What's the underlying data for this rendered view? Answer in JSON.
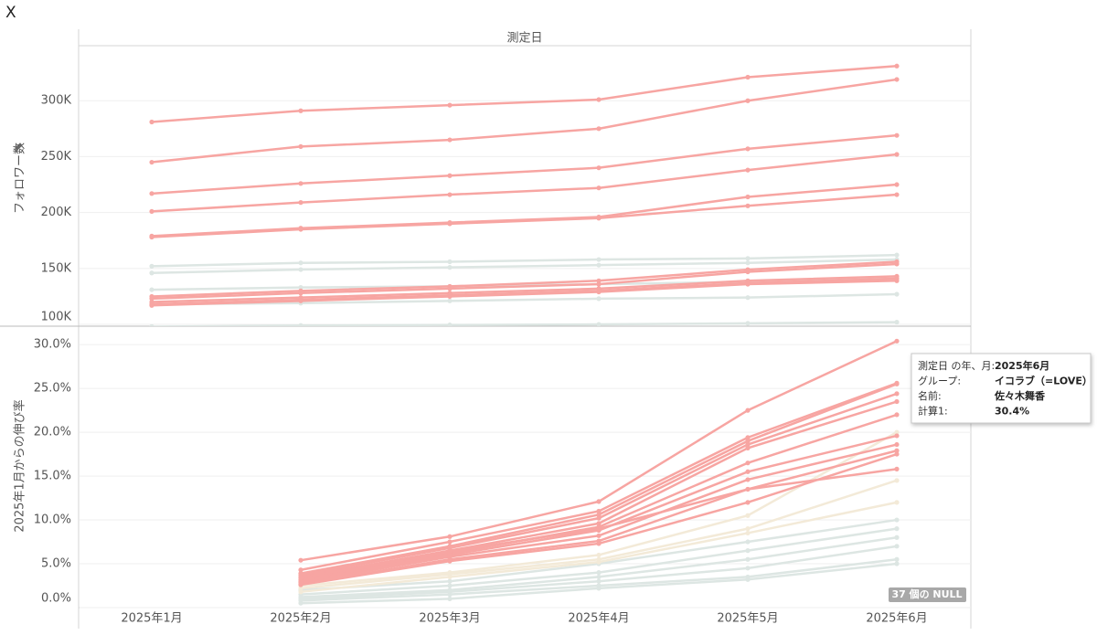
{
  "header": {
    "close": "X"
  },
  "chart_data": [
    {
      "type": "line",
      "x_label": "測定日",
      "y_label": "フォロワー数",
      "grid": true,
      "ylim": [
        98400,
        349200
      ],
      "yticks": [
        {
          "value": 100000,
          "label": "100K"
        },
        {
          "value": 150000,
          "label": "150K"
        },
        {
          "value": 200000,
          "label": "200K"
        },
        {
          "value": 250000,
          "label": "250K"
        },
        {
          "value": 300000,
          "label": "300K"
        }
      ],
      "series": [
        {
          "color": "#dde6e3",
          "values": [
            152000,
            155000,
            156000,
            158000,
            159000,
            162000
          ]
        },
        {
          "color": "#dde6e3",
          "values": [
            146000,
            149000,
            151000,
            153000,
            155000,
            158000
          ]
        },
        {
          "color": "#dde6e3",
          "values": [
            131000,
            133000,
            134000,
            136000,
            138000,
            141000
          ]
        },
        {
          "color": "#dde6e3",
          "values": [
            118000,
            119000,
            121000,
            123000,
            124000,
            127000
          ]
        },
        {
          "color": "#dde6e3",
          "values": [
            98000,
            99000,
            99500,
            100000,
            101000,
            102000
          ]
        },
        {
          "color": "#f7a5a2",
          "values": [
            281000,
            291000,
            296000,
            301000,
            321000,
            331000
          ]
        },
        {
          "color": "#f7a5a2",
          "values": [
            245000,
            259000,
            265000,
            275000,
            300000,
            319000
          ]
        },
        {
          "color": "#f7a5a2",
          "values": [
            217000,
            226000,
            233000,
            240000,
            257000,
            269000
          ]
        },
        {
          "color": "#f7a5a2",
          "values": [
            201000,
            209000,
            216000,
            222000,
            238000,
            252000
          ]
        },
        {
          "color": "#f7a5a2",
          "values": [
            179000,
            186000,
            191000,
            196000,
            214000,
            225000
          ]
        },
        {
          "color": "#f7a5a2",
          "values": [
            178000,
            185000,
            190000,
            195000,
            206000,
            216000
          ]
        },
        {
          "color": "#f7a5a2",
          "values": [
            125000,
            130000,
            134000,
            139000,
            149000,
            156000
          ]
        },
        {
          "color": "#f7a5a2",
          "values": [
            123000,
            128000,
            132000,
            136000,
            147000,
            154000
          ]
        },
        {
          "color": "#f7a5a2",
          "values": [
            120000,
            124000,
            128000,
            132000,
            139000,
            143000
          ]
        },
        {
          "color": "#f7a5a2",
          "values": [
            118000,
            122000,
            126000,
            130000,
            137000,
            141000
          ]
        },
        {
          "color": "#f7a5a2",
          "values": [
            117000,
            121000,
            125000,
            129000,
            136000,
            139000
          ]
        }
      ]
    },
    {
      "type": "line",
      "y_label": "2025年1月からの伸び率",
      "grid": true,
      "categories": [
        "2025年1月",
        "2025年2月",
        "2025年3月",
        "2025年4月",
        "2025年5月",
        "2025年6月"
      ],
      "ylim": [
        0,
        32.1
      ],
      "yticks": [
        {
          "value": 0,
          "label": "0.0%"
        },
        {
          "value": 5,
          "label": "5.0%"
        },
        {
          "value": 10,
          "label": "10.0%"
        },
        {
          "value": 15,
          "label": "15.0%"
        },
        {
          "value": 20,
          "label": "20.0%"
        },
        {
          "value": 25,
          "label": "25.0%"
        },
        {
          "value": 30,
          "label": "30.0%"
        }
      ],
      "series": [
        {
          "color": "#dde6e3",
          "values": [
            null,
            2.0,
            3.0,
            5.0,
            7.5,
            10.0
          ]
        },
        {
          "color": "#dde6e3",
          "values": [
            null,
            1.5,
            2.5,
            4.0,
            6.5,
            9.0
          ]
        },
        {
          "color": "#dde6e3",
          "values": [
            null,
            1.2,
            2.0,
            3.5,
            5.5,
            8.0
          ]
        },
        {
          "color": "#dde6e3",
          "values": [
            null,
            1.0,
            1.8,
            3.0,
            4.5,
            7.0
          ]
        },
        {
          "color": "#dde6e3",
          "values": [
            null,
            0.8,
            1.5,
            2.5,
            3.5,
            5.5
          ]
        },
        {
          "color": "#dde6e3",
          "values": [
            null,
            0.5,
            1.0,
            2.2,
            3.2,
            5.0
          ]
        },
        {
          "color": "#f3ead8",
          "values": [
            null,
            2.5,
            4.0,
            6.0,
            10.5,
            20.0
          ]
        },
        {
          "color": "#f3ead8",
          "values": [
            null,
            2.2,
            3.8,
            5.5,
            9.0,
            14.5
          ]
        },
        {
          "color": "#f3ead8",
          "values": [
            null,
            1.8,
            3.5,
            5.2,
            8.5,
            12.0
          ]
        },
        {
          "color": "#f7a5a2",
          "values": [
            null,
            5.4,
            8.1,
            12.1,
            22.5,
            30.4
          ]
        },
        {
          "color": "#f7a5a2",
          "values": [
            null,
            4.3,
            7.5,
            11.0,
            19.4,
            25.6
          ]
        },
        {
          "color": "#f7a5a2",
          "values": [
            null,
            3.9,
            7.0,
            10.6,
            19.0,
            25.5
          ]
        },
        {
          "color": "#f7a5a2",
          "values": [
            null,
            3.7,
            6.8,
            10.2,
            18.6,
            24.4
          ]
        },
        {
          "color": "#f7a5a2",
          "values": [
            null,
            3.5,
            6.5,
            9.6,
            18.2,
            23.5
          ]
        },
        {
          "color": "#f7a5a2",
          "values": [
            null,
            3.2,
            6.2,
            9.2,
            16.5,
            22.0
          ]
        },
        {
          "color": "#f7a5a2",
          "values": [
            null,
            3.0,
            6.0,
            8.8,
            15.5,
            19.6
          ]
        },
        {
          "color": "#f7a5a2",
          "values": [
            null,
            2.9,
            5.8,
            8.2,
            14.6,
            18.6
          ]
        },
        {
          "color": "#f7a5a2",
          "values": [
            null,
            2.7,
            5.5,
            7.6,
            13.5,
            17.9
          ]
        },
        {
          "color": "#f7a5a2",
          "values": [
            null,
            2.6,
            5.3,
            7.3,
            12.0,
            17.5
          ]
        },
        {
          "color": "#f7a5a2",
          "values": [
            null,
            3.4,
            6.4,
            9.0,
            13.5,
            15.8
          ]
        }
      ]
    }
  ],
  "tooltip": {
    "rows": [
      {
        "label": "測定日 の年、月:",
        "value": "2025年6月"
      },
      {
        "label": "グループ:",
        "value": "イコラブ（=LOVE）"
      },
      {
        "label": "名前:",
        "value": "佐々木舞香"
      },
      {
        "label": "計算1:",
        "value": "30.4%"
      }
    ]
  },
  "null_indicator": "37 個の NULL"
}
